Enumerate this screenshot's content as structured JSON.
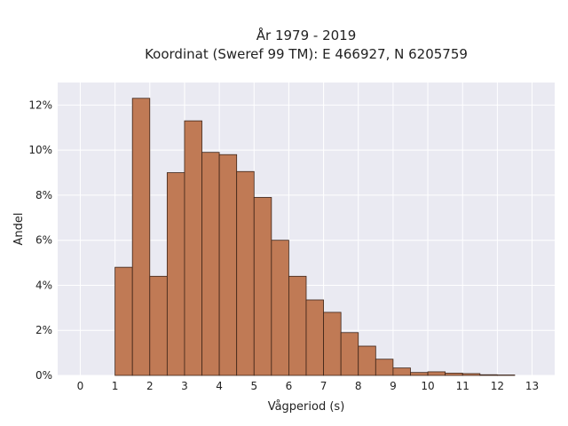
{
  "chart_data": {
    "type": "bar",
    "title_lines": [
      "År 1979 - 2019",
      "Koordinat (Sweref 99 TM): E 466927, N 6205759"
    ],
    "xlabel": "Vågperiod (s)",
    "ylabel": "Andel",
    "bin_width": 0.5,
    "bins": [
      {
        "x0": 1.0,
        "value": 4.8
      },
      {
        "x0": 1.5,
        "value": 12.3
      },
      {
        "x0": 2.0,
        "value": 4.4
      },
      {
        "x0": 2.5,
        "value": 9.0
      },
      {
        "x0": 3.0,
        "value": 11.3
      },
      {
        "x0": 3.5,
        "value": 9.9
      },
      {
        "x0": 4.0,
        "value": 9.8
      },
      {
        "x0": 4.5,
        "value": 9.05
      },
      {
        "x0": 5.0,
        "value": 7.9
      },
      {
        "x0": 5.5,
        "value": 6.0
      },
      {
        "x0": 6.0,
        "value": 4.4
      },
      {
        "x0": 6.5,
        "value": 3.35
      },
      {
        "x0": 7.0,
        "value": 2.8
      },
      {
        "x0": 7.5,
        "value": 1.9
      },
      {
        "x0": 8.0,
        "value": 1.3
      },
      {
        "x0": 8.5,
        "value": 0.72
      },
      {
        "x0": 9.0,
        "value": 0.33
      },
      {
        "x0": 9.5,
        "value": 0.13
      },
      {
        "x0": 10.0,
        "value": 0.16
      },
      {
        "x0": 10.5,
        "value": 0.1
      },
      {
        "x0": 11.0,
        "value": 0.08
      },
      {
        "x0": 11.5,
        "value": 0.03
      },
      {
        "x0": 12.0,
        "value": 0.02
      }
    ],
    "x_ticks": [
      {
        "value": 0,
        "label": "0"
      },
      {
        "value": 1,
        "label": "1"
      },
      {
        "value": 2,
        "label": "2"
      },
      {
        "value": 3,
        "label": "3"
      },
      {
        "value": 4,
        "label": "4"
      },
      {
        "value": 5,
        "label": "5"
      },
      {
        "value": 6,
        "label": "6"
      },
      {
        "value": 7,
        "label": "7"
      },
      {
        "value": 8,
        "label": "8"
      },
      {
        "value": 9,
        "label": "9"
      },
      {
        "value": 10,
        "label": "10"
      },
      {
        "value": 11,
        "label": "11"
      },
      {
        "value": 12,
        "label": "12"
      },
      {
        "value": 13,
        "label": "13"
      }
    ],
    "y_ticks": [
      {
        "value": 0,
        "label": "0%"
      },
      {
        "value": 2,
        "label": "2%"
      },
      {
        "value": 4,
        "label": "4%"
      },
      {
        "value": 6,
        "label": "6%"
      },
      {
        "value": 8,
        "label": "8%"
      },
      {
        "value": 10,
        "label": "10%"
      },
      {
        "value": 12,
        "label": "12%"
      }
    ],
    "xlim": [
      -0.65,
      13.65
    ],
    "ylim": [
      0,
      13.0
    ],
    "grid": true,
    "colors": {
      "bar_fill": "#c07a55",
      "bar_edge": "#3d2418",
      "plot_bg": "#eaeaf2",
      "grid": "#ffffff"
    }
  }
}
